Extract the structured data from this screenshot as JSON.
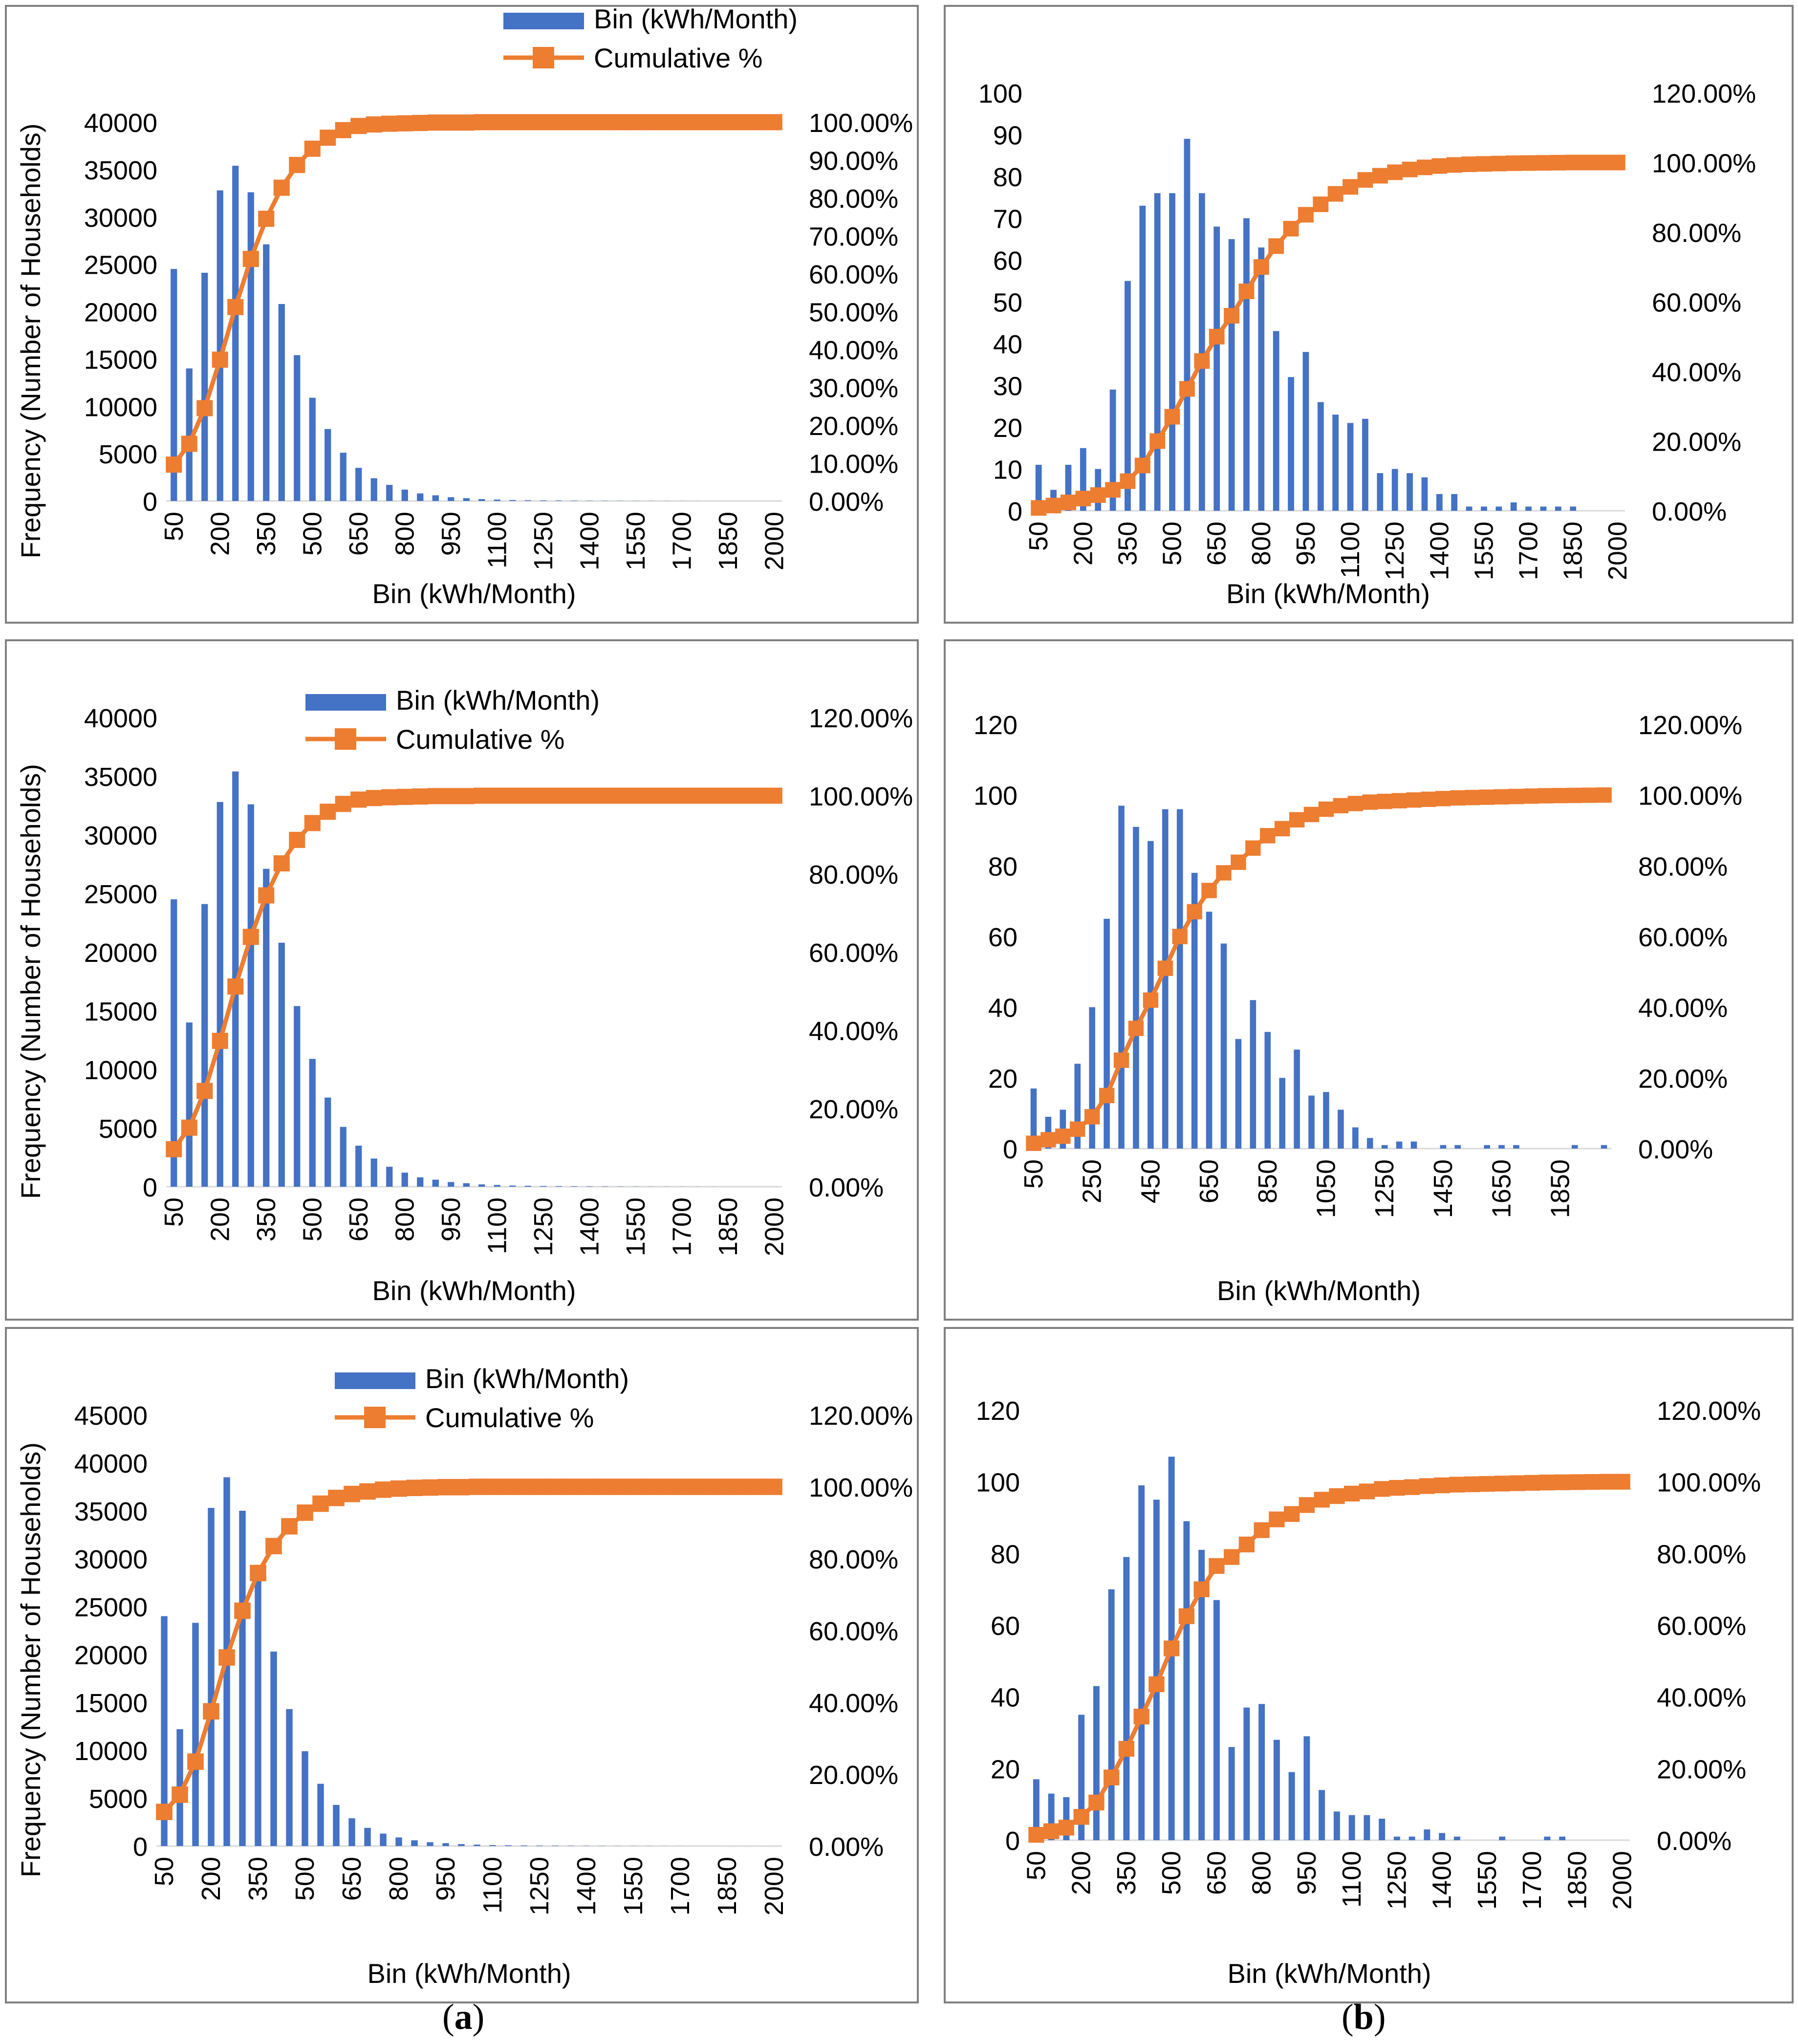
{
  "captions": {
    "a": {
      "open": "(",
      "letter": "a",
      "close": ")"
    },
    "b": {
      "open": "(",
      "letter": "b",
      "close": ")"
    }
  },
  "colors": {
    "bar": "#4472C4",
    "cumulative": "#ED7D31",
    "axis": "#D9D9D9",
    "frame": "#808080",
    "text": "#000000"
  },
  "chart_data": [
    {
      "type": "bar",
      "panel": "a-top",
      "xlabel": "Bin (kWh/Month)",
      "ylabel": "Frequency (Number of Households)",
      "legend": [
        "Bin (kWh/Month)",
        "Cumulative %"
      ],
      "legend_position": "top",
      "ylim": [
        0,
        40000
      ],
      "yticks": [
        0,
        5000,
        10000,
        15000,
        20000,
        25000,
        30000,
        35000,
        40000
      ],
      "y2lim": [
        0,
        100
      ],
      "y2ticks": [
        "0.00%",
        "10.00%",
        "20.00%",
        "30.00%",
        "40.00%",
        "50.00%",
        "60.00%",
        "70.00%",
        "80.00%",
        "90.00%",
        "100.00%"
      ],
      "xticks": [
        "50",
        "200",
        "350",
        "500",
        "650",
        "800",
        "950",
        "1100",
        "1250",
        "1400",
        "1550",
        "1700",
        "1850",
        "2000"
      ],
      "bin_start": 50,
      "bin_step": 50,
      "series": [
        {
          "name": "Bin (kWh/Month)",
          "kind": "bar",
          "values": [
            24500,
            14000,
            24100,
            32800,
            35400,
            32600,
            27100,
            20800,
            15400,
            10900,
            7600,
            5100,
            3500,
            2400,
            1700,
            1200,
            800,
            600,
            400,
            300,
            200,
            150,
            100,
            80,
            60,
            50,
            40,
            30,
            25,
            20,
            15,
            12,
            10,
            8,
            6,
            5,
            4,
            3,
            2,
            2
          ]
        },
        {
          "name": "Cumulative %",
          "kind": "line",
          "values": [
            9.6,
            15.1,
            24.5,
            37.3,
            51.2,
            63.9,
            74.5,
            82.7,
            88.7,
            93.0,
            95.9,
            97.9,
            99.0,
            99.4,
            99.6,
            99.7,
            99.8,
            99.9,
            99.9,
            99.9,
            100,
            100,
            100,
            100,
            100,
            100,
            100,
            100,
            100,
            100,
            100,
            100,
            100,
            100,
            100,
            100,
            100,
            100,
            100,
            100
          ]
        }
      ]
    },
    {
      "type": "bar",
      "panel": "b-top",
      "xlabel": "Bin (kWh/Month)",
      "ylabel": "",
      "ylim": [
        0,
        100
      ],
      "yticks": [
        0,
        10,
        20,
        30,
        40,
        50,
        60,
        70,
        80,
        90,
        100
      ],
      "y2lim": [
        0,
        120
      ],
      "y2ticks": [
        "0.00%",
        "20.00%",
        "40.00%",
        "60.00%",
        "80.00%",
        "100.00%",
        "120.00%"
      ],
      "xticks": [
        "50",
        "200",
        "350",
        "500",
        "650",
        "800",
        "950",
        "1100",
        "1250",
        "1400",
        "1550",
        "1700",
        "1850",
        "2000"
      ],
      "bin_start": 50,
      "bin_step": 50,
      "series": [
        {
          "name": "Bin (kWh/Month)",
          "kind": "bar",
          "values": [
            11,
            5,
            11,
            15,
            10,
            29,
            55,
            73,
            76,
            76,
            89,
            76,
            68,
            65,
            70,
            63,
            43,
            32,
            38,
            26,
            23,
            21,
            22,
            9,
            10,
            9,
            8,
            4,
            4,
            1,
            1,
            1,
            2,
            1,
            1,
            1,
            1,
            0,
            0,
            0
          ]
        },
        {
          "name": "Cumulative %",
          "kind": "line",
          "values": [
            0.8,
            1.5,
            2.4,
            3.5,
            4.5,
            6.0,
            8.5,
            13.0,
            20.0,
            27.0,
            35.0,
            43.0,
            50.0,
            56.0,
            63.0,
            70.0,
            76.0,
            81.0,
            85.0,
            88.0,
            91.0,
            93.0,
            95.0,
            96.2,
            97.2,
            98.0,
            98.6,
            99.0,
            99.3,
            99.5,
            99.6,
            99.7,
            99.8,
            99.85,
            99.9,
            99.95,
            100,
            100,
            100,
            100
          ]
        }
      ]
    },
    {
      "type": "bar",
      "panel": "a-middle",
      "xlabel": "Bin (kWh/Month)",
      "ylabel": "Frequency (Number of Households)",
      "legend": [
        "Bin (kWh/Month)",
        "Cumulative %"
      ],
      "legend_position": "top",
      "ylim": [
        0,
        40000
      ],
      "yticks": [
        0,
        5000,
        10000,
        15000,
        20000,
        25000,
        30000,
        35000,
        40000
      ],
      "y2lim": [
        0,
        120
      ],
      "y2ticks": [
        "0.00%",
        "20.00%",
        "40.00%",
        "60.00%",
        "80.00%",
        "100.00%",
        "120.00%"
      ],
      "xticks": [
        "50",
        "200",
        "350",
        "500",
        "650",
        "800",
        "950",
        "1100",
        "1250",
        "1400",
        "1550",
        "1700",
        "1850",
        "2000"
      ],
      "bin_start": 50,
      "bin_step": 50,
      "series": [
        {
          "name": "Bin (kWh/Month)",
          "kind": "bar",
          "values": [
            24500,
            14000,
            24100,
            32800,
            35400,
            32600,
            27100,
            20800,
            15400,
            10900,
            7600,
            5100,
            3500,
            2400,
            1700,
            1200,
            800,
            600,
            400,
            300,
            200,
            150,
            100,
            80,
            60,
            50,
            40,
            30,
            25,
            20,
            15,
            12,
            10,
            8,
            6,
            5,
            4,
            3,
            2,
            2
          ]
        },
        {
          "name": "Cumulative %",
          "kind": "line",
          "values": [
            9.6,
            15.1,
            24.5,
            37.3,
            51.2,
            63.9,
            74.5,
            82.7,
            88.7,
            93.0,
            95.9,
            97.9,
            99.0,
            99.4,
            99.6,
            99.7,
            99.8,
            99.9,
            99.9,
            99.9,
            100,
            100,
            100,
            100,
            100,
            100,
            100,
            100,
            100,
            100,
            100,
            100,
            100,
            100,
            100,
            100,
            100,
            100,
            100,
            100
          ]
        }
      ]
    },
    {
      "type": "bar",
      "panel": "b-middle",
      "xlabel": "Bin (kWh/Month)",
      "ylabel": "",
      "ylim": [
        0,
        120
      ],
      "yticks": [
        0,
        20,
        40,
        60,
        80,
        100,
        120
      ],
      "y2lim": [
        0,
        120
      ],
      "y2ticks": [
        "0.00%",
        "20.00%",
        "40.00%",
        "60.00%",
        "80.00%",
        "100.00%",
        "120.00%"
      ],
      "xticks": [
        "50",
        "250",
        "450",
        "650",
        "850",
        "1050",
        "1250",
        "1450",
        "1650",
        "1850"
      ],
      "bin_start": 50,
      "bin_step": 50,
      "series": [
        {
          "name": "Bin (kWh/Month)",
          "kind": "bar",
          "values": [
            17,
            9,
            11,
            24,
            40,
            65,
            97,
            91,
            87,
            96,
            96,
            78,
            67,
            58,
            31,
            42,
            33,
            20,
            28,
            15,
            16,
            11,
            6,
            3,
            1,
            2,
            2,
            0,
            1,
            1,
            0,
            1,
            1,
            1,
            0,
            0,
            0,
            1,
            0,
            1
          ]
        },
        {
          "name": "Cumulative %",
          "kind": "line",
          "values": [
            1.5,
            2.5,
            3.5,
            5.5,
            9.0,
            15.0,
            25.0,
            34.0,
            42.0,
            51.0,
            60.0,
            67.0,
            73.0,
            78.0,
            81.0,
            85.0,
            88.5,
            90.5,
            93.0,
            94.5,
            96.0,
            97.0,
            97.6,
            98.0,
            98.2,
            98.4,
            98.6,
            98.8,
            99.0,
            99.2,
            99.3,
            99.4,
            99.5,
            99.6,
            99.7,
            99.8,
            99.85,
            99.9,
            99.95,
            100
          ]
        }
      ]
    },
    {
      "type": "bar",
      "panel": "a-bottom",
      "xlabel": "Bin (kWh/Month)",
      "ylabel": "Frequency (Number of Households)",
      "legend": [
        "Bin (kWh/Month)",
        "Cumulative %"
      ],
      "legend_position": "top",
      "ylim": [
        0,
        45000
      ],
      "yticks": [
        0,
        5000,
        10000,
        15000,
        20000,
        25000,
        30000,
        35000,
        40000,
        45000
      ],
      "y2lim": [
        0,
        120
      ],
      "y2ticks": [
        "0.00%",
        "20.00%",
        "40.00%",
        "60.00%",
        "80.00%",
        "100.00%",
        "120.00%"
      ],
      "xticks": [
        "50",
        "200",
        "350",
        "500",
        "650",
        "800",
        "950",
        "1100",
        "1250",
        "1400",
        "1550",
        "1700",
        "1850",
        "2000"
      ],
      "bin_start": 50,
      "bin_step": 50,
      "series": [
        {
          "name": "Bin (kWh/Month)",
          "kind": "bar",
          "values": [
            24000,
            12200,
            23300,
            35300,
            38500,
            35000,
            29300,
            20300,
            14300,
            9900,
            6500,
            4300,
            2900,
            1900,
            1300,
            900,
            600,
            400,
            300,
            200,
            150,
            100,
            80,
            60,
            50,
            40,
            30,
            25,
            20,
            15,
            12,
            10,
            8,
            6,
            5,
            4,
            3,
            2,
            2,
            1
          ]
        },
        {
          "name": "Cumulative %",
          "kind": "line",
          "values": [
            9.5,
            14.3,
            23.5,
            37.5,
            52.5,
            65.5,
            76.0,
            83.5,
            89.0,
            92.8,
            95.3,
            96.9,
            98.0,
            98.7,
            99.2,
            99.5,
            99.7,
            99.8,
            99.9,
            99.9,
            100,
            100,
            100,
            100,
            100,
            100,
            100,
            100,
            100,
            100,
            100,
            100,
            100,
            100,
            100,
            100,
            100,
            100,
            100,
            100
          ]
        }
      ]
    },
    {
      "type": "bar",
      "panel": "b-bottom",
      "xlabel": "Bin (kWh/Month)",
      "ylabel": "",
      "ylim": [
        0,
        120
      ],
      "yticks": [
        0,
        20,
        40,
        60,
        80,
        100,
        120
      ],
      "y2lim": [
        0,
        120
      ],
      "y2ticks": [
        "0.00%",
        "20.00%",
        "40.00%",
        "60.00%",
        "80.00%",
        "100.00%",
        "120.00%"
      ],
      "xticks": [
        "50",
        "200",
        "350",
        "500",
        "650",
        "800",
        "950",
        "1100",
        "1250",
        "1400",
        "1550",
        "1700",
        "1850",
        "2000"
      ],
      "bin_start": 50,
      "bin_step": 50,
      "series": [
        {
          "name": "Bin (kWh/Month)",
          "kind": "bar",
          "values": [
            17,
            13,
            12,
            35,
            43,
            70,
            79,
            99,
            95,
            107,
            89,
            81,
            67,
            26,
            37,
            38,
            28,
            19,
            29,
            14,
            8,
            7,
            7,
            6,
            1,
            1,
            3,
            2,
            1,
            0,
            0,
            1,
            0,
            0,
            1,
            1,
            0,
            0,
            0,
            0
          ]
        },
        {
          "name": "Cumulative %",
          "kind": "line",
          "values": [
            1.5,
            2.5,
            3.5,
            6.5,
            10.5,
            17.5,
            25.5,
            34.5,
            43.5,
            53.5,
            62.5,
            70.0,
            76.5,
            79.0,
            82.5,
            86.5,
            89.5,
            91.0,
            93.5,
            95.0,
            96.0,
            96.7,
            97.3,
            98.0,
            98.3,
            98.5,
            98.8,
            99.0,
            99.2,
            99.3,
            99.4,
            99.5,
            99.6,
            99.7,
            99.8,
            99.85,
            99.9,
            99.95,
            100,
            100
          ]
        }
      ]
    }
  ]
}
